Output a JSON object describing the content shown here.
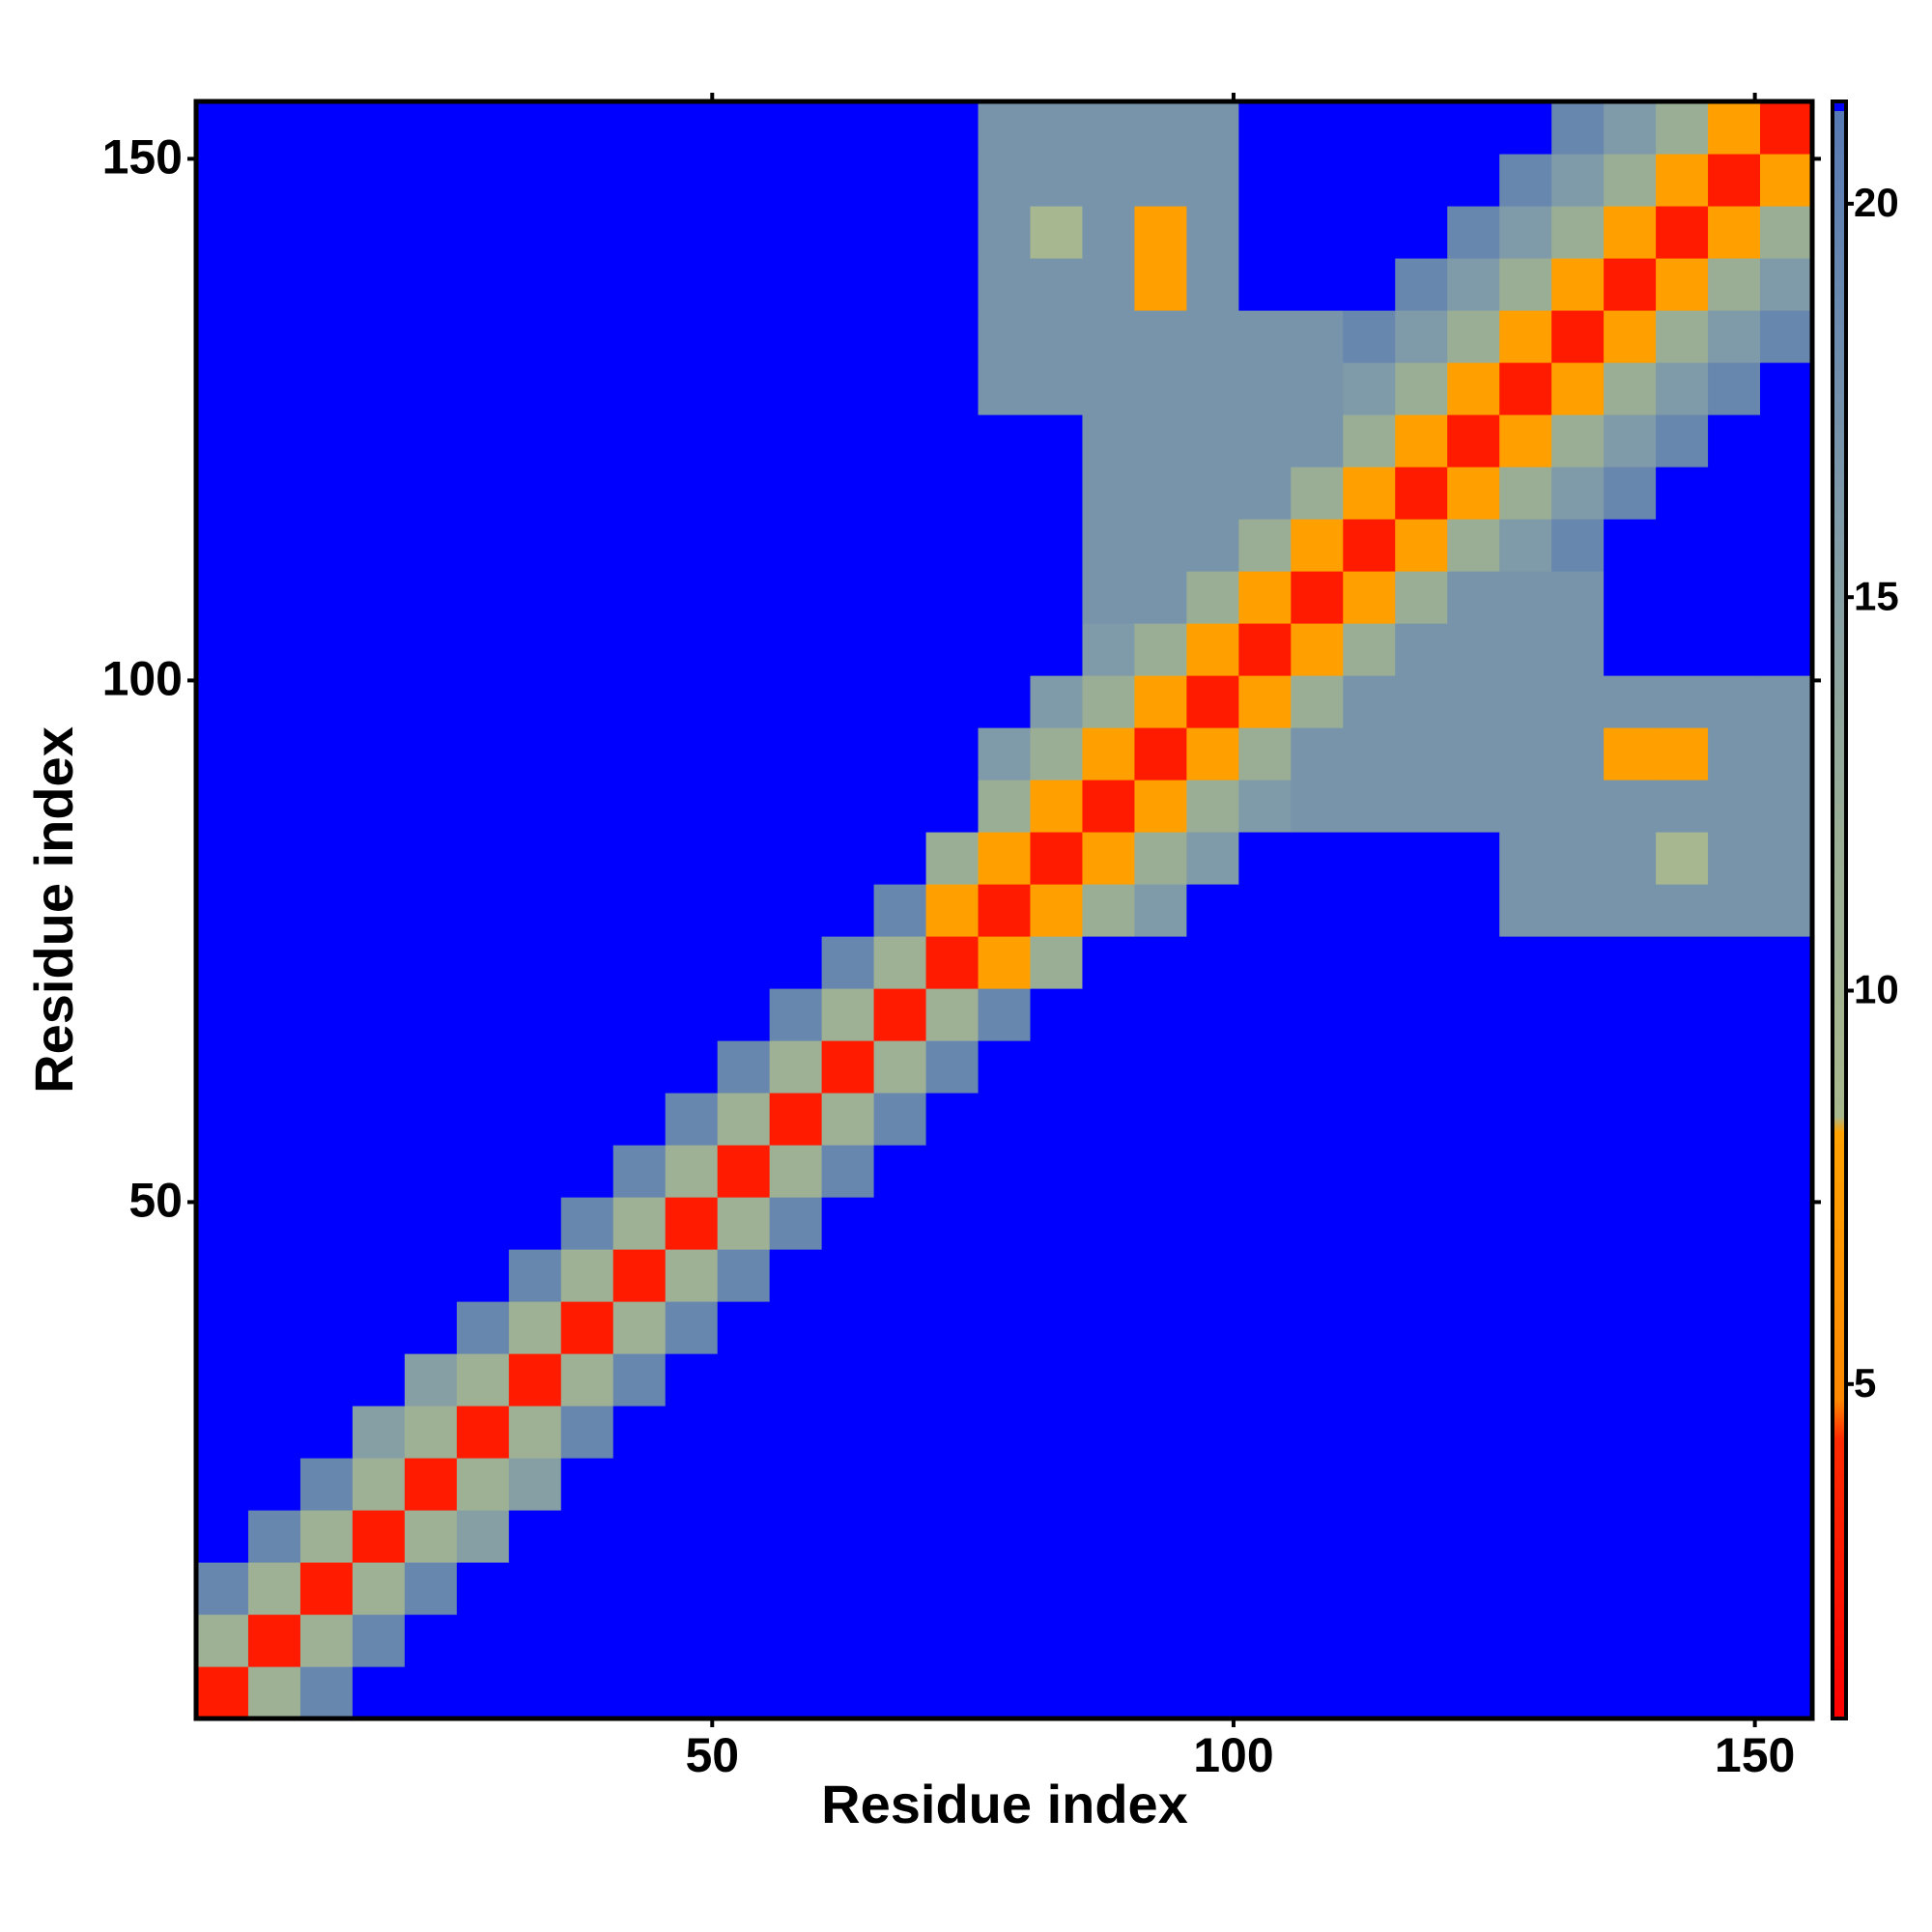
{
  "chart_data": {
    "type": "heatmap",
    "x_label": "Residue index",
    "y_label": "Residue index",
    "xlim": [
      0.5,
      155.5
    ],
    "ylim": [
      0.5,
      155.5
    ],
    "xticks": [
      50,
      100,
      150
    ],
    "yticks": [
      50,
      100,
      150
    ],
    "zlim": [
      0.75,
      21.3
    ],
    "colorbar_ticks": [
      5,
      10,
      15,
      20
    ],
    "colorscale": [
      [
        0.75,
        "#ff0000"
      ],
      [
        4.3,
        "#ff2a00"
      ],
      [
        4.8,
        "#ff8800"
      ],
      [
        8.2,
        "#ffa200"
      ],
      [
        8.4,
        "#a9b98e"
      ],
      [
        12,
        "#9aae96"
      ],
      [
        16,
        "#7f9aa8"
      ],
      [
        21.3,
        "#5679b4"
      ]
    ],
    "over_color": "#0000ff",
    "x_bins": [
      0.5,
      5.5,
      10.5,
      15.5,
      20.5,
      25.5,
      30.5,
      35.5,
      40.5,
      45.5,
      50.5,
      55.5,
      60.5,
      65.5,
      70.5,
      75.5,
      80.5,
      85.5,
      90.5,
      95.5,
      100.5,
      105.5,
      110.5,
      115.5,
      120.5,
      125.5,
      130.5,
      135.5,
      140.5,
      145.5,
      150.5,
      155.5
    ],
    "y_bins": [
      0.5,
      5.5,
      10.5,
      15.5,
      20.5,
      25.5,
      30.5,
      35.5,
      40.5,
      45.5,
      50.5,
      55.5,
      60.5,
      65.5,
      70.5,
      75.5,
      80.5,
      85.5,
      90.5,
      95.5,
      100.5,
      105.5,
      110.5,
      115.5,
      120.5,
      125.5,
      130.5,
      135.5,
      140.5,
      145.5,
      150.5,
      155.5
    ],
    "z": [
      [
        3,
        11,
        19,
        25,
        25,
        25,
        25,
        25,
        25,
        25,
        25,
        25,
        25,
        25,
        25,
        25,
        25,
        25,
        25,
        25,
        25,
        25,
        25,
        25,
        25,
        25,
        25,
        25,
        25,
        25,
        25
      ],
      [
        11,
        3,
        11,
        19,
        25,
        25,
        25,
        25,
        25,
        25,
        25,
        25,
        25,
        25,
        25,
        25,
        25,
        25,
        25,
        25,
        25,
        25,
        25,
        25,
        25,
        25,
        25,
        25,
        25,
        25,
        25
      ],
      [
        19,
        11,
        3,
        11,
        19,
        25,
        25,
        25,
        25,
        25,
        25,
        25,
        25,
        25,
        25,
        25,
        25,
        25,
        25,
        25,
        25,
        25,
        25,
        25,
        25,
        25,
        25,
        25,
        25,
        25,
        25
      ],
      [
        25,
        19,
        11,
        3,
        11,
        15,
        25,
        25,
        25,
        25,
        25,
        25,
        25,
        25,
        25,
        25,
        25,
        25,
        25,
        25,
        25,
        25,
        25,
        25,
        25,
        25,
        25,
        25,
        25,
        25,
        25
      ],
      [
        25,
        25,
        19,
        11,
        3,
        11,
        15,
        25,
        25,
        25,
        25,
        25,
        25,
        25,
        25,
        25,
        25,
        25,
        25,
        25,
        25,
        25,
        25,
        25,
        25,
        25,
        25,
        25,
        25,
        25,
        25
      ],
      [
        25,
        25,
        25,
        15,
        11,
        3,
        11,
        19,
        25,
        25,
        25,
        25,
        25,
        25,
        25,
        25,
        25,
        25,
        25,
        25,
        25,
        25,
        25,
        25,
        25,
        25,
        25,
        25,
        25,
        25,
        25
      ],
      [
        25,
        25,
        25,
        25,
        15,
        11,
        3,
        11,
        19,
        25,
        25,
        25,
        25,
        25,
        25,
        25,
        25,
        25,
        25,
        25,
        25,
        25,
        25,
        25,
        25,
        25,
        25,
        25,
        25,
        25,
        25
      ],
      [
        25,
        25,
        25,
        25,
        25,
        19,
        11,
        3,
        11,
        19,
        25,
        25,
        25,
        25,
        25,
        25,
        25,
        25,
        25,
        25,
        25,
        25,
        25,
        25,
        25,
        25,
        25,
        25,
        25,
        25,
        25
      ],
      [
        25,
        25,
        25,
        25,
        25,
        25,
        19,
        11,
        3,
        11,
        19,
        25,
        25,
        25,
        25,
        25,
        25,
        25,
        25,
        25,
        25,
        25,
        25,
        25,
        25,
        25,
        25,
        25,
        25,
        25,
        25
      ],
      [
        25,
        25,
        25,
        25,
        25,
        25,
        25,
        19,
        11,
        3,
        11,
        19,
        25,
        25,
        25,
        25,
        25,
        25,
        25,
        25,
        25,
        25,
        25,
        25,
        25,
        25,
        25,
        25,
        25,
        25,
        25
      ],
      [
        25,
        25,
        25,
        25,
        25,
        25,
        25,
        25,
        19,
        11,
        3,
        11,
        19,
        25,
        25,
        25,
        25,
        25,
        25,
        25,
        25,
        25,
        25,
        25,
        25,
        25,
        25,
        25,
        25,
        25,
        25
      ],
      [
        25,
        25,
        25,
        25,
        25,
        25,
        25,
        25,
        25,
        19,
        11,
        3,
        11,
        19,
        25,
        25,
        25,
        25,
        25,
        25,
        25,
        25,
        25,
        25,
        25,
        25,
        25,
        25,
        25,
        25,
        25
      ],
      [
        25,
        25,
        25,
        25,
        25,
        25,
        25,
        25,
        25,
        25,
        19,
        11,
        3,
        11,
        19,
        25,
        25,
        25,
        25,
        25,
        25,
        25,
        25,
        25,
        25,
        25,
        25,
        25,
        25,
        25,
        25
      ],
      [
        25,
        25,
        25,
        25,
        25,
        25,
        25,
        25,
        25,
        25,
        25,
        19,
        11,
        3,
        11,
        19,
        25,
        25,
        25,
        25,
        25,
        25,
        25,
        25,
        25,
        25,
        25,
        25,
        25,
        25,
        25
      ],
      [
        25,
        25,
        25,
        25,
        25,
        25,
        25,
        25,
        25,
        25,
        25,
        25,
        19,
        11,
        3,
        8,
        12,
        25,
        25,
        25,
        25,
        25,
        25,
        25,
        25,
        25,
        25,
        25,
        25,
        25,
        25
      ],
      [
        25,
        25,
        25,
        25,
        25,
        25,
        25,
        25,
        25,
        25,
        25,
        25,
        25,
        19,
        8,
        3,
        8,
        12,
        16,
        25,
        25,
        25,
        25,
        25,
        25,
        17,
        17,
        17,
        17,
        17,
        17
      ],
      [
        25,
        25,
        25,
        25,
        25,
        25,
        25,
        25,
        25,
        25,
        25,
        25,
        25,
        25,
        12,
        8,
        3,
        8,
        12,
        16,
        25,
        25,
        25,
        25,
        25,
        17,
        17,
        17,
        9,
        17,
        17
      ],
      [
        25,
        25,
        25,
        25,
        25,
        25,
        25,
        25,
        25,
        25,
        25,
        25,
        25,
        25,
        25,
        12,
        8,
        3,
        8,
        12,
        16,
        17,
        17,
        17,
        17,
        17,
        17,
        17,
        17,
        17,
        17
      ],
      [
        25,
        25,
        25,
        25,
        25,
        25,
        25,
        25,
        25,
        25,
        25,
        25,
        25,
        25,
        25,
        16,
        12,
        8,
        3,
        8,
        12,
        17,
        17,
        17,
        17,
        17,
        17,
        8,
        8,
        17,
        17
      ],
      [
        25,
        25,
        25,
        25,
        25,
        25,
        25,
        25,
        25,
        25,
        25,
        25,
        25,
        25,
        25,
        25,
        16,
        12,
        8,
        3,
        8,
        12,
        17,
        17,
        17,
        17,
        17,
        17,
        17,
        17,
        17
      ],
      [
        25,
        25,
        25,
        25,
        25,
        25,
        25,
        25,
        25,
        25,
        25,
        25,
        25,
        25,
        25,
        25,
        25,
        16,
        12,
        8,
        3,
        8,
        12,
        17,
        17,
        17,
        17,
        25,
        25,
        25,
        25
      ],
      [
        25,
        25,
        25,
        25,
        25,
        25,
        25,
        25,
        25,
        25,
        25,
        25,
        25,
        25,
        25,
        25,
        25,
        17,
        17,
        12,
        8,
        3,
        8,
        12,
        17,
        17,
        17,
        25,
        25,
        25,
        25
      ],
      [
        25,
        25,
        25,
        25,
        25,
        25,
        25,
        25,
        25,
        25,
        25,
        25,
        25,
        25,
        25,
        25,
        25,
        17,
        17,
        17,
        12,
        8,
        3,
        8,
        12,
        16,
        19,
        25,
        25,
        25,
        25
      ],
      [
        25,
        25,
        25,
        25,
        25,
        25,
        25,
        25,
        25,
        25,
        25,
        25,
        25,
        25,
        25,
        25,
        25,
        17,
        17,
        17,
        17,
        12,
        8,
        3,
        8,
        12,
        16,
        19,
        25,
        25,
        25
      ],
      [
        25,
        25,
        25,
        25,
        25,
        25,
        25,
        25,
        25,
        25,
        25,
        25,
        25,
        25,
        25,
        25,
        25,
        17,
        17,
        17,
        17,
        17,
        12,
        8,
        3,
        8,
        12,
        16,
        19,
        25,
        25
      ],
      [
        25,
        25,
        25,
        25,
        25,
        25,
        25,
        25,
        25,
        25,
        25,
        25,
        25,
        25,
        25,
        17,
        17,
        17,
        17,
        17,
        17,
        17,
        16,
        12,
        8,
        3,
        8,
        12,
        16,
        19,
        25
      ],
      [
        25,
        25,
        25,
        25,
        25,
        25,
        25,
        25,
        25,
        25,
        25,
        25,
        25,
        25,
        25,
        17,
        17,
        17,
        17,
        17,
        17,
        17,
        19,
        16,
        12,
        8,
        3,
        8,
        12,
        16,
        19
      ],
      [
        25,
        25,
        25,
        25,
        25,
        25,
        25,
        25,
        25,
        25,
        25,
        25,
        25,
        25,
        25,
        17,
        17,
        17,
        8,
        17,
        25,
        25,
        25,
        19,
        16,
        12,
        8,
        3,
        8,
        12,
        16
      ],
      [
        25,
        25,
        25,
        25,
        25,
        25,
        25,
        25,
        25,
        25,
        25,
        25,
        25,
        25,
        25,
        17,
        9,
        17,
        8,
        17,
        25,
        25,
        25,
        25,
        19,
        16,
        12,
        8,
        3,
        8,
        12
      ],
      [
        25,
        25,
        25,
        25,
        25,
        25,
        25,
        25,
        25,
        25,
        25,
        25,
        25,
        25,
        25,
        17,
        17,
        17,
        17,
        17,
        25,
        25,
        25,
        25,
        25,
        19,
        16,
        12,
        8,
        3,
        8
      ],
      [
        25,
        25,
        25,
        25,
        25,
        25,
        25,
        25,
        25,
        25,
        25,
        25,
        25,
        25,
        25,
        17,
        17,
        17,
        17,
        17,
        25,
        25,
        25,
        25,
        25,
        25,
        19,
        16,
        12,
        8,
        3
      ]
    ]
  }
}
